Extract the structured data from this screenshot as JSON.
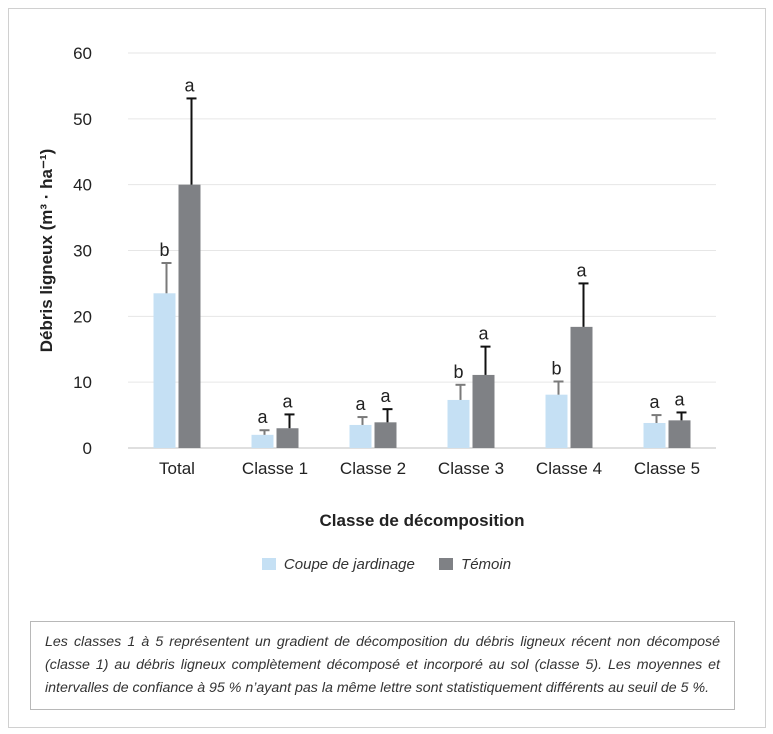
{
  "chart_data": {
    "type": "bar",
    "ylabel": "Débris ligneux (m³ · ha⁻¹)",
    "xlabel": "Classe de décomposition",
    "ylim": [
      0,
      60
    ],
    "yticks": [
      0,
      10,
      20,
      30,
      40,
      50,
      60
    ],
    "grid": true,
    "legend_position": "bottom",
    "categories": [
      "Total",
      "Classe 1",
      "Classe 2",
      "Classe 3",
      "Classe 4",
      "Classe 5"
    ],
    "series": [
      {
        "name": "Coupe de jardinage",
        "color": "#c5e0f4",
        "values": [
          23.5,
          2.0,
          3.5,
          7.3,
          8.1,
          3.8
        ],
        "error_upper": [
          28.1,
          2.7,
          4.7,
          9.6,
          10.1,
          5.0
        ],
        "letters": [
          "b",
          "a",
          "a",
          "b",
          "b",
          "a"
        ]
      },
      {
        "name": "Témoin",
        "color": "#7f8185",
        "values": [
          40.0,
          3.0,
          3.9,
          11.1,
          18.4,
          4.2
        ],
        "error_upper": [
          53.1,
          5.1,
          5.9,
          15.4,
          25.0,
          5.4
        ],
        "letters": [
          "a",
          "a",
          "a",
          "a",
          "a",
          "a"
        ]
      }
    ]
  },
  "note": "Les classes 1 à 5 représentent un gradient de décomposition du débris ligneux récent non décomposé (classe 1) au débris ligneux complètement décomposé et incorporé au sol (classe 5). Les moyennes et intervalles de confiance à 95 % n’ayant pas la même lettre sont statistiquement différents au seuil de 5 %."
}
